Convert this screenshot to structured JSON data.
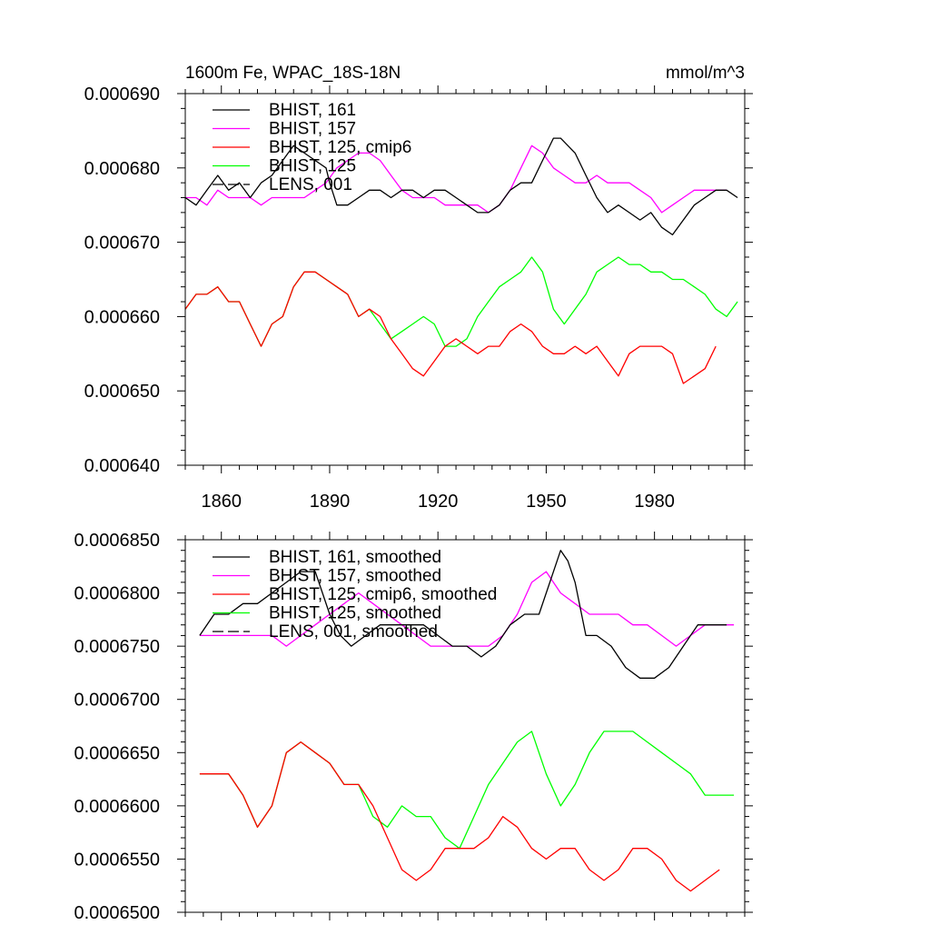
{
  "colors": {
    "BHIST_161": "#000000",
    "BHIST_157": "#ff00ff",
    "BHIST_125_cmip6": "#ff0000",
    "BHIST_125": "#00ff00",
    "LENS_001": "#000000"
  },
  "chart_data": [
    {
      "type": "line",
      "title": "1600m Fe, WPAC_18S-18N",
      "units": "mmol/m^3",
      "xlabel": "",
      "ylabel": "",
      "xlim": [
        1850,
        2005
      ],
      "ylim": [
        0.00064,
        0.00069
      ],
      "xticks": [
        1860,
        1890,
        1920,
        1950,
        1980
      ],
      "xtick_labels": [
        "1860",
        "1890",
        "1920",
        "1950",
        "1980"
      ],
      "yticks": [
        0.00064,
        0.00065,
        0.00066,
        0.00067,
        0.00068,
        0.00069
      ],
      "ytick_labels": [
        "0.000640",
        "0.000650",
        "0.000660",
        "0.000670",
        "0.000680",
        "0.000690"
      ],
      "legend_position": "top-left",
      "series": [
        {
          "key": "BHIST_161",
          "name": "BHIST, 161",
          "style": "solid",
          "x": [
            1850,
            1853,
            1856,
            1859,
            1862,
            1865,
            1868,
            1871,
            1874,
            1877,
            1880,
            1883,
            1886,
            1889,
            1890,
            1892,
            1895,
            1898,
            1901,
            1904,
            1907,
            1910,
            1913,
            1916,
            1919,
            1922,
            1925,
            1928,
            1931,
            1934,
            1937,
            1940,
            1943,
            1946,
            1949,
            1952,
            1954,
            1956,
            1958,
            1961,
            1964,
            1967,
            1970,
            1973,
            1976,
            1979,
            1982,
            1985,
            1988,
            1991,
            1994,
            1997,
            2000,
            2003
          ],
          "y": [
            0.000676,
            0.000675,
            0.000677,
            0.000679,
            0.000677,
            0.000678,
            0.000676,
            0.000678,
            0.000679,
            0.000681,
            0.000683,
            0.000682,
            0.000681,
            0.00068,
            0.000678,
            0.000675,
            0.000675,
            0.000676,
            0.000677,
            0.000677,
            0.000676,
            0.000677,
            0.000677,
            0.000676,
            0.000677,
            0.000677,
            0.000676,
            0.000675,
            0.000674,
            0.000674,
            0.000675,
            0.000677,
            0.000678,
            0.000678,
            0.000681,
            0.000684,
            0.000684,
            0.000683,
            0.000682,
            0.000679,
            0.000676,
            0.000674,
            0.000675,
            0.000674,
            0.000673,
            0.000674,
            0.000672,
            0.000671,
            0.000673,
            0.000675,
            0.000676,
            0.000677,
            0.000677,
            0.000676
          ]
        },
        {
          "key": "BHIST_157",
          "name": "BHIST, 157",
          "style": "solid",
          "x": [
            1850,
            1853,
            1856,
            1859,
            1862,
            1865,
            1868,
            1871,
            1874,
            1877,
            1880,
            1883,
            1886,
            1889,
            1892,
            1895,
            1898,
            1901,
            1904,
            1907,
            1910,
            1913,
            1916,
            1919,
            1922,
            1925,
            1928,
            1931,
            1934,
            1937,
            1940,
            1943,
            1946,
            1949,
            1952,
            1955,
            1958,
            1961,
            1964,
            1967,
            1970,
            1973,
            1976,
            1979,
            1982,
            1985,
            1988,
            1991,
            1994,
            1997,
            2000
          ],
          "y": [
            0.000676,
            0.000676,
            0.000675,
            0.000677,
            0.000676,
            0.000676,
            0.000676,
            0.000675,
            0.000676,
            0.000676,
            0.000676,
            0.000676,
            0.000677,
            0.000678,
            0.00068,
            0.000681,
            0.000682,
            0.000682,
            0.000681,
            0.000679,
            0.000677,
            0.000676,
            0.000676,
            0.000676,
            0.000675,
            0.000675,
            0.000675,
            0.000675,
            0.000674,
            0.000675,
            0.000677,
            0.00068,
            0.000683,
            0.000682,
            0.00068,
            0.000679,
            0.000678,
            0.000678,
            0.000679,
            0.000678,
            0.000678,
            0.000678,
            0.000677,
            0.000676,
            0.000674,
            0.000675,
            0.000676,
            0.000677,
            0.000677,
            0.000677,
            0.000677
          ]
        },
        {
          "key": "BHIST_125_cmip6",
          "name": "BHIST, 125, cmip6",
          "style": "solid",
          "x": [
            1850,
            1853,
            1856,
            1859,
            1862,
            1865,
            1868,
            1871,
            1874,
            1877,
            1880,
            1883,
            1886,
            1889,
            1892,
            1895,
            1898,
            1901,
            1904,
            1907,
            1910,
            1913,
            1916,
            1919,
            1922,
            1925,
            1928,
            1931,
            1934,
            1937,
            1940,
            1943,
            1946,
            1949,
            1952,
            1955,
            1958,
            1961,
            1964,
            1967,
            1970,
            1973,
            1976,
            1979,
            1982,
            1985,
            1988,
            1991,
            1994,
            1997
          ],
          "y": [
            0.000661,
            0.000663,
            0.000663,
            0.000664,
            0.000662,
            0.000662,
            0.000659,
            0.000656,
            0.000659,
            0.00066,
            0.000664,
            0.000666,
            0.000666,
            0.000665,
            0.000664,
            0.000663,
            0.00066,
            0.000661,
            0.00066,
            0.000657,
            0.000655,
            0.000653,
            0.000652,
            0.000654,
            0.000656,
            0.000657,
            0.000656,
            0.000655,
            0.000656,
            0.000656,
            0.000658,
            0.000659,
            0.000658,
            0.000656,
            0.000655,
            0.000655,
            0.000656,
            0.000655,
            0.000656,
            0.000654,
            0.000652,
            0.000655,
            0.000656,
            0.000656,
            0.000656,
            0.000655,
            0.000651,
            0.000652,
            0.000653,
            0.000656
          ]
        },
        {
          "key": "BHIST_125",
          "name": "BHIST, 125",
          "style": "solid",
          "x": [
            1850,
            1853,
            1856,
            1859,
            1862,
            1865,
            1868,
            1871,
            1874,
            1877,
            1880,
            1883,
            1886,
            1889,
            1892,
            1895,
            1898,
            1901,
            1904,
            1907,
            1910,
            1913,
            1916,
            1919,
            1922,
            1925,
            1928,
            1931,
            1934,
            1937,
            1940,
            1943,
            1946,
            1949,
            1952,
            1955,
            1958,
            1961,
            1964,
            1967,
            1970,
            1973,
            1976,
            1979,
            1982,
            1985,
            1988,
            1991,
            1994,
            1997,
            2000,
            2003
          ],
          "y": [
            0.000661,
            0.000663,
            0.000663,
            0.000664,
            0.000662,
            0.000662,
            0.000659,
            0.000656,
            0.000659,
            0.00066,
            0.000664,
            0.000666,
            0.000666,
            0.000665,
            0.000664,
            0.000663,
            0.00066,
            0.000661,
            0.000659,
            0.000657,
            0.000658,
            0.000659,
            0.00066,
            0.000659,
            0.000656,
            0.000656,
            0.000657,
            0.00066,
            0.000662,
            0.000664,
            0.000665,
            0.000666,
            0.000668,
            0.000666,
            0.000661,
            0.000659,
            0.000661,
            0.000663,
            0.000666,
            0.000667,
            0.000668,
            0.000667,
            0.000667,
            0.000666,
            0.000666,
            0.000665,
            0.000665,
            0.000664,
            0.000663,
            0.000661,
            0.00066,
            0.000662
          ]
        },
        {
          "key": "LENS_001",
          "name": "LENS, 001",
          "style": "dashed",
          "x": [],
          "y": []
        }
      ]
    },
    {
      "type": "line",
      "title": "",
      "units": "",
      "xlabel": "",
      "ylabel": "",
      "xlim": [
        1850,
        2005
      ],
      "ylim": [
        0.00065,
        0.000685
      ],
      "xticks": [
        1860,
        1890,
        1920,
        1950,
        1980
      ],
      "xtick_labels": [],
      "yticks": [
        0.00065,
        0.000655,
        0.00066,
        0.000665,
        0.00067,
        0.000675,
        0.00068,
        0.000685
      ],
      "ytick_labels": [
        "0.0006500",
        "0.0006550",
        "0.0006600",
        "0.0006650",
        "0.0006700",
        "0.0006750",
        "0.0006800",
        "0.0006850"
      ],
      "legend_position": "top-left",
      "series": [
        {
          "key": "BHIST_161",
          "name": "BHIST, 161, smoothed",
          "style": "solid",
          "x": [
            1854,
            1858,
            1862,
            1866,
            1870,
            1874,
            1878,
            1882,
            1886,
            1890,
            1893,
            1896,
            1900,
            1904,
            1908,
            1912,
            1916,
            1920,
            1924,
            1928,
            1932,
            1936,
            1940,
            1944,
            1948,
            1952,
            1954,
            1956,
            1958,
            1961,
            1964,
            1968,
            1972,
            1976,
            1980,
            1984,
            1988,
            1992,
            1996,
            2000
          ],
          "y": [
            0.000676,
            0.000678,
            0.000678,
            0.000679,
            0.000679,
            0.00068,
            0.000681,
            0.000682,
            0.000682,
            0.000678,
            0.000676,
            0.000675,
            0.000676,
            0.000677,
            0.000677,
            0.000677,
            0.000677,
            0.000676,
            0.000675,
            0.000675,
            0.000674,
            0.000675,
            0.000677,
            0.000678,
            0.000678,
            0.000682,
            0.000684,
            0.000683,
            0.000681,
            0.000676,
            0.000676,
            0.000675,
            0.000673,
            0.000672,
            0.000672,
            0.000673,
            0.000675,
            0.000677,
            0.000677,
            0.000677
          ]
        },
        {
          "key": "BHIST_157",
          "name": "BHIST, 157, smoothed",
          "style": "solid",
          "x": [
            1854,
            1858,
            1862,
            1866,
            1870,
            1874,
            1878,
            1882,
            1886,
            1890,
            1894,
            1898,
            1902,
            1906,
            1910,
            1914,
            1918,
            1922,
            1926,
            1930,
            1934,
            1938,
            1942,
            1946,
            1950,
            1954,
            1958,
            1962,
            1966,
            1970,
            1974,
            1978,
            1982,
            1986,
            1990,
            1994,
            1998,
            2002
          ],
          "y": [
            0.000676,
            0.000676,
            0.000676,
            0.000676,
            0.000676,
            0.000676,
            0.000675,
            0.000676,
            0.000677,
            0.000678,
            0.000679,
            0.00068,
            0.000679,
            0.000678,
            0.000677,
            0.000676,
            0.000675,
            0.000675,
            0.000675,
            0.000675,
            0.000675,
            0.000676,
            0.000678,
            0.000681,
            0.000682,
            0.00068,
            0.000679,
            0.000678,
            0.000678,
            0.000678,
            0.000677,
            0.000677,
            0.000676,
            0.000675,
            0.000676,
            0.000677,
            0.000677,
            0.000677
          ]
        },
        {
          "key": "BHIST_125_cmip6",
          "name": "BHIST, 125, cmip6, smoothed",
          "style": "solid",
          "x": [
            1854,
            1858,
            1862,
            1866,
            1870,
            1874,
            1878,
            1882,
            1886,
            1890,
            1894,
            1898,
            1902,
            1906,
            1910,
            1914,
            1918,
            1922,
            1926,
            1930,
            1934,
            1938,
            1942,
            1946,
            1950,
            1954,
            1958,
            1962,
            1966,
            1970,
            1974,
            1978,
            1982,
            1986,
            1990,
            1994,
            1998
          ],
          "y": [
            0.000663,
            0.000663,
            0.000663,
            0.000661,
            0.000658,
            0.00066,
            0.000665,
            0.000666,
            0.000665,
            0.000664,
            0.000662,
            0.000662,
            0.00066,
            0.000657,
            0.000654,
            0.000653,
            0.000654,
            0.000656,
            0.000656,
            0.000656,
            0.000657,
            0.000659,
            0.000658,
            0.000656,
            0.000655,
            0.000656,
            0.000656,
            0.000654,
            0.000653,
            0.000654,
            0.000656,
            0.000656,
            0.000655,
            0.000653,
            0.000652,
            0.000653,
            0.000654
          ]
        },
        {
          "key": "BHIST_125",
          "name": "BHIST, 125, smoothed",
          "style": "solid",
          "x": [
            1854,
            1858,
            1862,
            1866,
            1870,
            1874,
            1878,
            1882,
            1886,
            1890,
            1894,
            1898,
            1902,
            1906,
            1910,
            1914,
            1918,
            1922,
            1926,
            1930,
            1934,
            1938,
            1942,
            1946,
            1950,
            1954,
            1958,
            1962,
            1966,
            1970,
            1974,
            1978,
            1982,
            1986,
            1990,
            1994,
            1998,
            2002
          ],
          "y": [
            0.000663,
            0.000663,
            0.000663,
            0.000661,
            0.000658,
            0.00066,
            0.000665,
            0.000666,
            0.000665,
            0.000664,
            0.000662,
            0.000662,
            0.000659,
            0.000658,
            0.00066,
            0.000659,
            0.000659,
            0.000657,
            0.000656,
            0.000659,
            0.000662,
            0.000664,
            0.000666,
            0.000667,
            0.000663,
            0.00066,
            0.000662,
            0.000665,
            0.000667,
            0.000667,
            0.000667,
            0.000666,
            0.000665,
            0.000664,
            0.000663,
            0.000661,
            0.000661,
            0.000661
          ]
        },
        {
          "key": "LENS_001",
          "name": "LENS, 001, smoothed",
          "style": "dashed",
          "x": [],
          "y": []
        }
      ]
    }
  ]
}
